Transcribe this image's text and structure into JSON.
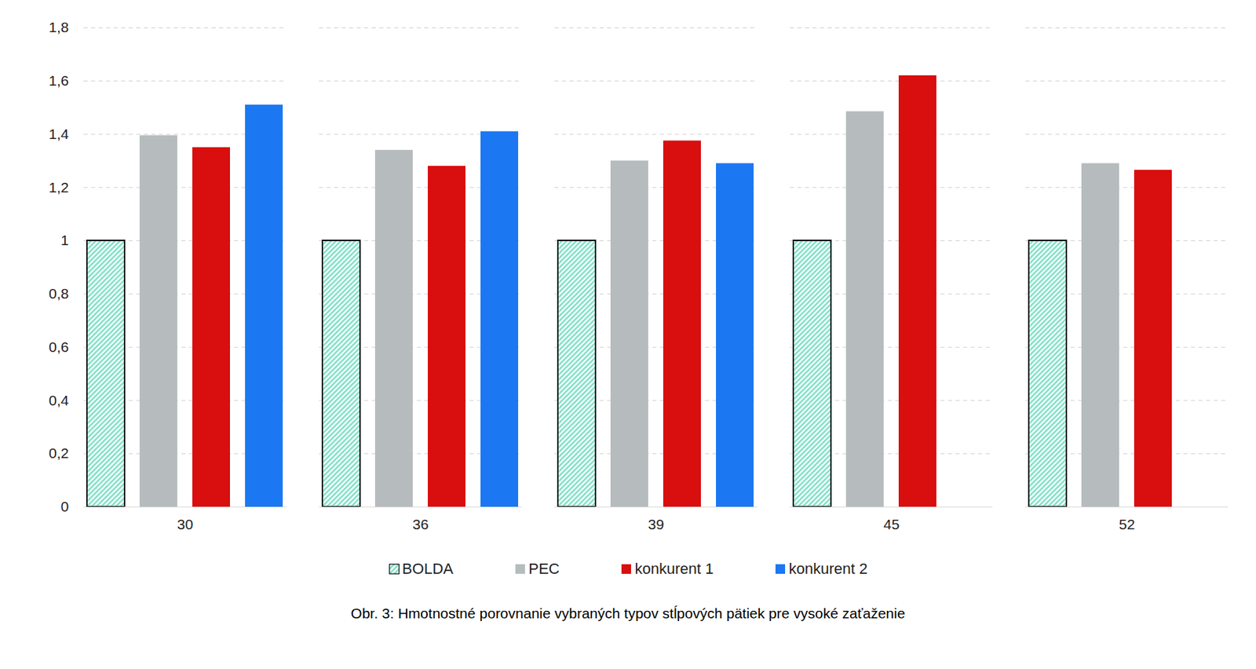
{
  "chart_data": {
    "type": "bar",
    "title": "Obr. 3: Hmotnostné porovnanie vybraných typov stĺpových pätiek pre vysoké zaťaženie",
    "categories": [
      "30",
      "36",
      "39",
      "45",
      "52"
    ],
    "series": [
      {
        "name": "BOLDA",
        "color": "#7fe0c6",
        "values": [
          1,
          1,
          1,
          1,
          1
        ]
      },
      {
        "name": "PEC",
        "color": "#b6bcbd",
        "values": [
          1.395,
          1.34,
          1.3,
          1.485,
          1.29
        ]
      },
      {
        "name": "konkurent 1",
        "color": "#d90e0e",
        "values": [
          1.35,
          1.28,
          1.375,
          1.62,
          1.265
        ]
      },
      {
        "name": "konkurent 2",
        "color": "#1c78f2",
        "values": [
          1.51,
          1.41,
          1.29,
          null,
          null
        ]
      }
    ],
    "ylim": [
      0,
      1.8
    ],
    "yticks": [
      0,
      {
        "value": 0.2,
        "label": "0,2"
      },
      {
        "value": 0.4,
        "label": "0,4"
      },
      {
        "value": 0.6,
        "label": "0,6"
      },
      {
        "value": 0.8,
        "label": "0,8"
      },
      1,
      {
        "value": 1.2,
        "label": "1,2"
      },
      {
        "value": 1.4,
        "label": "1,4"
      },
      {
        "value": 1.6,
        "label": "1,6"
      },
      {
        "value": 1.8,
        "label": "1,8"
      }
    ],
    "grid": true,
    "legend": "bottom"
  }
}
